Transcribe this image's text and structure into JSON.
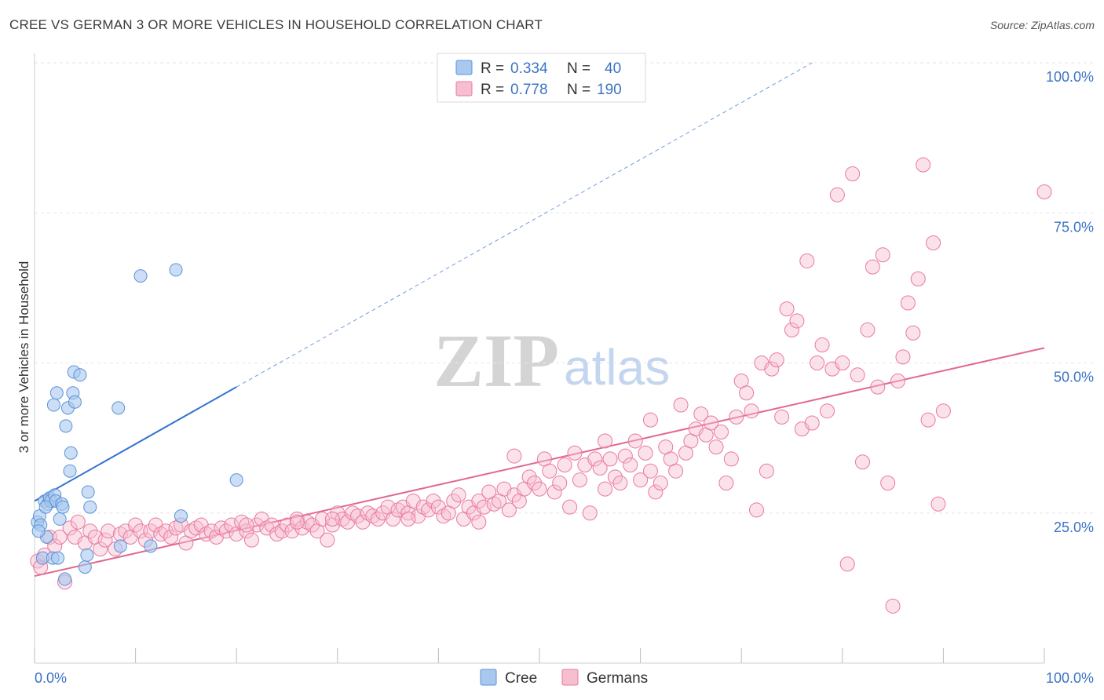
{
  "title": "CREE VS GERMAN 3 OR MORE VEHICLES IN HOUSEHOLD CORRELATION CHART",
  "source": "Source: ZipAtlas.com",
  "watermark": {
    "zip": "ZIP",
    "atlas": "atlas"
  },
  "legend_top": {
    "rows": [
      {
        "r_label": "R =",
        "r_value": "0.334",
        "n_label": "N =",
        "n_value": "40"
      },
      {
        "r_label": "R =",
        "r_value": "0.778",
        "n_label": "N =",
        "n_value": "190"
      }
    ]
  },
  "legend_bottom": [
    "Cree",
    "Germans"
  ],
  "colors": {
    "cree_fill": "#a9c8ef",
    "cree_stroke": "#5b93d8",
    "cree_line": "#3573d1",
    "german_fill": "#f6bfd0",
    "german_stroke": "#e8799f",
    "german_line": "#e2688f",
    "tick_text": "#3b73c4",
    "grid": "#e6e6e6"
  },
  "chart_data": {
    "type": "scatter",
    "title": "CREE VS GERMAN 3 OR MORE VEHICLES IN HOUSEHOLD CORRELATION CHART",
    "xlabel": "",
    "ylabel": "3 or more Vehicles in Household",
    "xlim": [
      0,
      100
    ],
    "ylim": [
      0,
      100
    ],
    "x_tick_labels": [
      "0.0%",
      "100.0%"
    ],
    "y_ticks": [
      25,
      50,
      75,
      100
    ],
    "y_tick_labels": [
      "25.0%",
      "50.0%",
      "75.0%",
      "100.0%"
    ],
    "grid": true,
    "legend_position": "top-center",
    "series": [
      {
        "name": "Cree",
        "R": 0.334,
        "N": 40,
        "trend": {
          "x": [
            0,
            20
          ],
          "y": [
            27,
            46
          ],
          "dashed_extension_to": [
            77,
            100
          ]
        },
        "points": [
          [
            0.3,
            23.5
          ],
          [
            0.5,
            24.5
          ],
          [
            0.6,
            23
          ],
          [
            0.8,
            17.5
          ],
          [
            1.0,
            27
          ],
          [
            1.2,
            21
          ],
          [
            1.3,
            26.5
          ],
          [
            1.5,
            27.5
          ],
          [
            1.6,
            27
          ],
          [
            1.8,
            17.5
          ],
          [
            2.0,
            28
          ],
          [
            2.1,
            27
          ],
          [
            2.3,
            17.5
          ],
          [
            2.5,
            24
          ],
          [
            2.7,
            26.5
          ],
          [
            2.8,
            26
          ],
          [
            3.0,
            14
          ],
          [
            3.1,
            39.5
          ],
          [
            3.3,
            42.5
          ],
          [
            3.5,
            32
          ],
          [
            3.6,
            35
          ],
          [
            3.8,
            45
          ],
          [
            3.9,
            48.5
          ],
          [
            4.0,
            43.5
          ],
          [
            4.5,
            48
          ],
          [
            5.0,
            16
          ],
          [
            5.2,
            18
          ],
          [
            5.3,
            28.5
          ],
          [
            5.5,
            26
          ],
          [
            8.5,
            19.5
          ],
          [
            8.3,
            42.5
          ],
          [
            10.5,
            64.5
          ],
          [
            11.5,
            19.5
          ],
          [
            14.0,
            65.5
          ],
          [
            14.5,
            24.5
          ],
          [
            20.0,
            30.5
          ],
          [
            2.2,
            45
          ],
          [
            1.9,
            43
          ],
          [
            0.4,
            22
          ],
          [
            1.1,
            26
          ]
        ]
      },
      {
        "name": "Germans",
        "R": 0.778,
        "N": 190,
        "trend": {
          "x": [
            0,
            100
          ],
          "y": [
            14.5,
            52.5
          ]
        },
        "points": [
          [
            0.3,
            17
          ],
          [
            0.6,
            16
          ],
          [
            1.0,
            18
          ],
          [
            1.5,
            21
          ],
          [
            2,
            19.5
          ],
          [
            2.5,
            21
          ],
          [
            3,
            13.5
          ],
          [
            3.5,
            22.5
          ],
          [
            4,
            21
          ],
          [
            4.3,
            23.5
          ],
          [
            5,
            20
          ],
          [
            5.5,
            22
          ],
          [
            6,
            21
          ],
          [
            6.5,
            19
          ],
          [
            7,
            20.5
          ],
          [
            7.3,
            22
          ],
          [
            8,
            19
          ],
          [
            8.5,
            21.5
          ],
          [
            9,
            22
          ],
          [
            9.5,
            21
          ],
          [
            10,
            23
          ],
          [
            10.5,
            22
          ],
          [
            11,
            20.5
          ],
          [
            11.5,
            22
          ],
          [
            12,
            23
          ],
          [
            12.5,
            21.5
          ],
          [
            13,
            22
          ],
          [
            13.5,
            21
          ],
          [
            14,
            22.5
          ],
          [
            14.5,
            23
          ],
          [
            15,
            20
          ],
          [
            15.5,
            22
          ],
          [
            16,
            22.5
          ],
          [
            16.5,
            23
          ],
          [
            17,
            21.5
          ],
          [
            17.5,
            22
          ],
          [
            18,
            21
          ],
          [
            18.5,
            22.5
          ],
          [
            19,
            22
          ],
          [
            19.5,
            23
          ],
          [
            20,
            21.5
          ],
          [
            20.5,
            23.5
          ],
          [
            21,
            22
          ],
          [
            21.5,
            20.5
          ],
          [
            22,
            23
          ],
          [
            22.5,
            24
          ],
          [
            23,
            22.5
          ],
          [
            23.5,
            23
          ],
          [
            24,
            21.5
          ],
          [
            24.5,
            22
          ],
          [
            25,
            23
          ],
          [
            25.5,
            22
          ],
          [
            26,
            24
          ],
          [
            26.5,
            22.5
          ],
          [
            27,
            23.5
          ],
          [
            27.5,
            23
          ],
          [
            28,
            22
          ],
          [
            28.5,
            24
          ],
          [
            29,
            20.5
          ],
          [
            29.5,
            23
          ],
          [
            30,
            25
          ],
          [
            30.5,
            24
          ],
          [
            31,
            23.5
          ],
          [
            31.5,
            25
          ],
          [
            32,
            24.5
          ],
          [
            32.5,
            23.5
          ],
          [
            33,
            25
          ],
          [
            33.5,
            24.5
          ],
          [
            34,
            24
          ],
          [
            34.5,
            25
          ],
          [
            35,
            26
          ],
          [
            35.5,
            24
          ],
          [
            36,
            25.5
          ],
          [
            36.5,
            26
          ],
          [
            37,
            25
          ],
          [
            37.5,
            27
          ],
          [
            38,
            24.5
          ],
          [
            38.5,
            26
          ],
          [
            39,
            25.5
          ],
          [
            39.5,
            27
          ],
          [
            40,
            26
          ],
          [
            40.5,
            24.5
          ],
          [
            41,
            25
          ],
          [
            41.5,
            27
          ],
          [
            42,
            28
          ],
          [
            42.5,
            24
          ],
          [
            43,
            26
          ],
          [
            43.5,
            25
          ],
          [
            44,
            27
          ],
          [
            44.5,
            26
          ],
          [
            45,
            28.5
          ],
          [
            45.5,
            26.5
          ],
          [
            46,
            27
          ],
          [
            46.5,
            29
          ],
          [
            47,
            25.5
          ],
          [
            47.5,
            28
          ],
          [
            48,
            27
          ],
          [
            48.5,
            29
          ],
          [
            49,
            31
          ],
          [
            49.5,
            30
          ],
          [
            50,
            29
          ],
          [
            50.5,
            34
          ],
          [
            51,
            32
          ],
          [
            51.5,
            28.5
          ],
          [
            52,
            30
          ],
          [
            52.5,
            33
          ],
          [
            53,
            26
          ],
          [
            53.5,
            35
          ],
          [
            54,
            30.5
          ],
          [
            54.5,
            33
          ],
          [
            55,
            25
          ],
          [
            55.5,
            34
          ],
          [
            56,
            32.5
          ],
          [
            56.5,
            29
          ],
          [
            57,
            34
          ],
          [
            57.5,
            31
          ],
          [
            58,
            30
          ],
          [
            58.5,
            34.5
          ],
          [
            59,
            33
          ],
          [
            59.5,
            37
          ],
          [
            60,
            30.5
          ],
          [
            60.5,
            35
          ],
          [
            61,
            32
          ],
          [
            61.5,
            28.5
          ],
          [
            62,
            30
          ],
          [
            62.5,
            36
          ],
          [
            63,
            34
          ],
          [
            63.5,
            32
          ],
          [
            64,
            43
          ],
          [
            64.5,
            35
          ],
          [
            65,
            37
          ],
          [
            65.5,
            39
          ],
          [
            66,
            41.5
          ],
          [
            66.5,
            38
          ],
          [
            67,
            40
          ],
          [
            67.5,
            36
          ],
          [
            68,
            38.5
          ],
          [
            68.5,
            30
          ],
          [
            69,
            34
          ],
          [
            69.5,
            41
          ],
          [
            70,
            47
          ],
          [
            70.5,
            45
          ],
          [
            71,
            42
          ],
          [
            71.5,
            25.5
          ],
          [
            72,
            50
          ],
          [
            72.5,
            32
          ],
          [
            73,
            49
          ],
          [
            73.5,
            50.5
          ],
          [
            74,
            41
          ],
          [
            74.5,
            59
          ],
          [
            75,
            55.5
          ],
          [
            75.5,
            57
          ],
          [
            76,
            39
          ],
          [
            76.5,
            67
          ],
          [
            77,
            40
          ],
          [
            77.5,
            50
          ],
          [
            78,
            53
          ],
          [
            78.5,
            42
          ],
          [
            79,
            49
          ],
          [
            79.5,
            78
          ],
          [
            80,
            50
          ],
          [
            80.5,
            16.5
          ],
          [
            81,
            81.5
          ],
          [
            81.5,
            48
          ],
          [
            82,
            33.5
          ],
          [
            82.5,
            55.5
          ],
          [
            83,
            66
          ],
          [
            83.5,
            46
          ],
          [
            84,
            68
          ],
          [
            84.5,
            30
          ],
          [
            85,
            9.5
          ],
          [
            85.5,
            47
          ],
          [
            86,
            51
          ],
          [
            86.5,
            60
          ],
          [
            87,
            55
          ],
          [
            87.5,
            64
          ],
          [
            88,
            83
          ],
          [
            88.5,
            40.5
          ],
          [
            89,
            70
          ],
          [
            89.5,
            26.5
          ],
          [
            90,
            42
          ],
          [
            100,
            78.5
          ],
          [
            47.5,
            34.5
          ],
          [
            56.5,
            37
          ],
          [
            61,
            40.5
          ],
          [
            44,
            23.5
          ],
          [
            37,
            24
          ],
          [
            29.5,
            24
          ],
          [
            26,
            23.5
          ],
          [
            21,
            23
          ]
        ]
      }
    ]
  }
}
